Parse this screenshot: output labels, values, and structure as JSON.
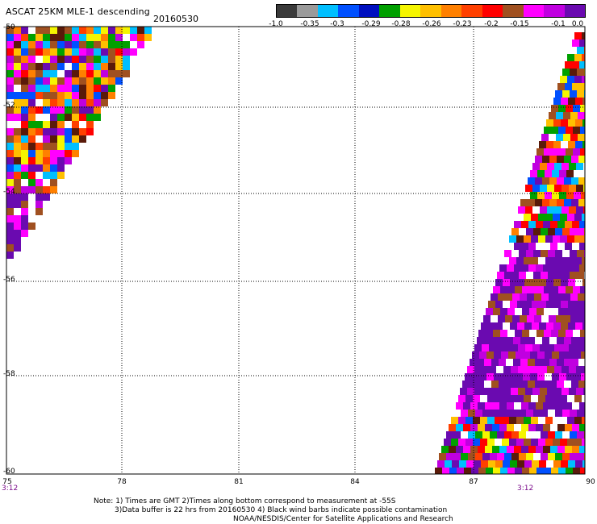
{
  "header": {
    "title": "ASCAT 25KM MLE-1 descending",
    "date": "20160530"
  },
  "colorbar": {
    "colors": [
      "#3a3a3a",
      "#9a9a9a",
      "#00bfff",
      "#0050ff",
      "#0010c0",
      "#00a000",
      "#f5f500",
      "#ffc000",
      "#ff8000",
      "#ff4000",
      "#ff0000",
      "#a05020",
      "#ff00ff",
      "#c000e0",
      "#6a0ab0"
    ],
    "labels": [
      "-1.0",
      "-0.35",
      "-0.3",
      "-0.29",
      "-0.28",
      "-0.26",
      "-0.23",
      "-0.2",
      "-0.15",
      "-0.1",
      "0.0"
    ]
  },
  "axes": {
    "x_ticks": [
      "75",
      "78",
      "81",
      "84",
      "87",
      "90"
    ],
    "y_ticks": [
      "-50",
      "-52",
      "-54",
      "-56",
      "-58",
      "-60"
    ],
    "time_labels": [
      "3:12",
      "3:12"
    ],
    "x_range": [
      75,
      90
    ],
    "y_range": [
      -60,
      -50
    ],
    "grid": "dotted"
  },
  "notes": {
    "line1": "Note: 1) Times are GMT 2)Times along bottom correspond to measurement at -55S",
    "line2": "3)Data buffer is 22 hrs from 20160530 4) Black wind barbs indicate possible contamination",
    "line3": "NOAA/NESDIS/Center for Satellite Applications and Research"
  }
}
